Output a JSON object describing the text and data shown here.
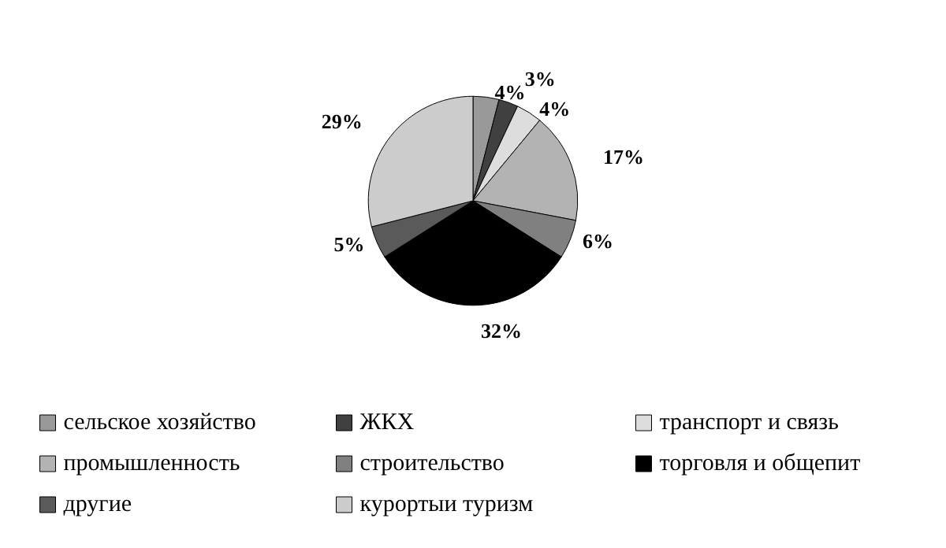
{
  "chart_data": {
    "type": "pie",
    "categories": [
      "сельское хозяйство",
      "ЖКХ",
      "транспорт и связь",
      "промышленность",
      "строительство",
      "торговля и общепит",
      "другие",
      "курортыи туризм"
    ],
    "values": [
      4,
      3,
      4,
      17,
      6,
      32,
      5,
      29
    ],
    "colors": [
      "#999999",
      "#404040",
      "#dddddd",
      "#b3b3b3",
      "#808080",
      "#000000",
      "#5a5a5a",
      "#cccccc"
    ],
    "value_labels": [
      "4%",
      "3%",
      "4%",
      "17%",
      "6%",
      "32%",
      "5%",
      "29%"
    ],
    "legend": "bottom"
  }
}
